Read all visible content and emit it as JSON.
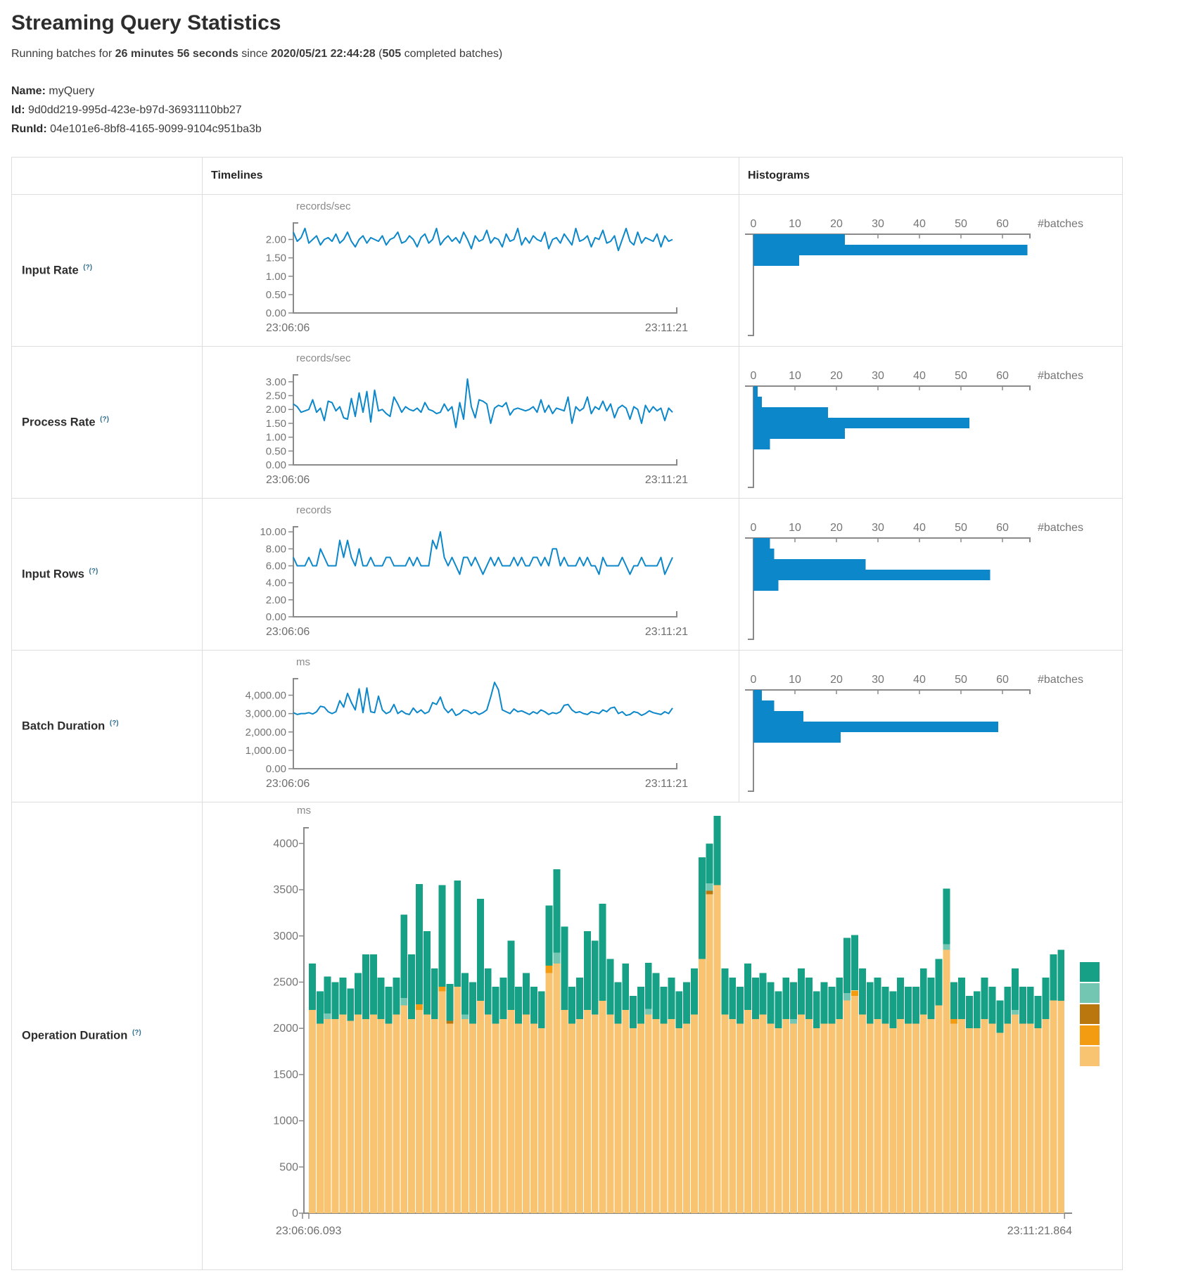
{
  "header": {
    "title": "Streaming Query Statistics"
  },
  "subtitle": {
    "part1": "Running batches for ",
    "bold1": "26 minutes 56 seconds",
    "part2": " since ",
    "bold2": "2020/05/21 22:44:28",
    "part3": " (",
    "bold3": "505",
    "part4": " completed batches)"
  },
  "meta": {
    "name_label": "Name:",
    "name": "myQuery",
    "id_label": "Id:",
    "id": "9d0dd219-995d-423e-b97d-36931110bb27",
    "runid_label": "RunId:",
    "runid": "04e101e6-8bf8-4165-9099-9104c951ba3b"
  },
  "table": {
    "timelines_header": "Timelines",
    "histograms_header": "Histograms"
  },
  "help_marker": "(?)",
  "colors": {
    "blue": "#0c87ca",
    "axis": "#8a8a8a",
    "tick_text": "#757575",
    "time_text": "#6e6e6e"
  },
  "rows": [
    {
      "label": "Input Rate",
      "timeline": {
        "unit": "records/sec",
        "v_max": 2.45,
        "y_ticks": [
          {
            "v": 0,
            "label": "0.00"
          },
          {
            "v": 0.5,
            "label": "0.50"
          },
          {
            "v": 1,
            "label": "1.00"
          },
          {
            "v": 1.5,
            "label": "1.50"
          },
          {
            "v": 2,
            "label": "2.00"
          }
        ],
        "x_left": "23:06:06",
        "x_right": "23:11:21",
        "values": [
          2.2,
          1.95,
          2.05,
          2.3,
          1.9,
          2.0,
          2.1,
          1.85,
          2.0,
          2.05,
          1.95,
          2.15,
          1.9,
          2.0,
          2.2,
          1.95,
          1.8,
          2.0,
          2.1,
          1.9,
          2.05,
          2.0,
          1.95,
          2.1,
          1.85,
          2.0,
          2.05,
          2.2,
          1.9,
          1.95,
          2.1,
          2.0,
          1.8,
          2.05,
          2.15,
          1.9,
          2.0,
          2.3,
          1.85,
          2.0,
          2.1,
          1.95,
          2.05,
          1.9,
          2.2,
          2.0,
          1.75,
          2.1,
          1.95,
          2.0,
          2.25,
          1.9,
          2.05,
          2.0,
          1.8,
          2.15,
          1.95,
          2.0,
          2.3,
          1.85,
          2.05,
          1.9,
          2.1,
          2.0,
          1.95,
          2.2,
          1.75,
          2.0,
          2.05,
          1.9,
          2.15,
          2.0,
          1.85,
          2.3,
          1.95,
          2.0,
          2.1,
          1.8,
          2.05,
          2.0,
          2.25,
          1.9,
          1.95,
          2.1,
          1.7,
          2.0,
          2.3,
          1.95,
          1.85,
          2.2,
          1.9,
          2.05,
          2.0,
          1.95,
          2.15,
          1.8,
          2.1,
          1.95,
          2.0
        ]
      },
      "histogram": {
        "ticks": [
          0,
          10,
          20,
          30,
          40,
          50,
          60
        ],
        "axis_label": "#batches",
        "values": [
          22,
          66,
          11
        ]
      }
    },
    {
      "label": "Process Rate",
      "timeline": {
        "unit": "records/sec",
        "v_max": 3.25,
        "y_ticks": [
          {
            "v": 0,
            "label": "0.00"
          },
          {
            "v": 0.5,
            "label": "0.50"
          },
          {
            "v": 1,
            "label": "1.00"
          },
          {
            "v": 1.5,
            "label": "1.50"
          },
          {
            "v": 2,
            "label": "2.00"
          },
          {
            "v": 2.5,
            "label": "2.50"
          },
          {
            "v": 3,
            "label": "3.00"
          }
        ],
        "x_left": "23:06:06",
        "x_right": "23:11:21",
        "values": [
          2.2,
          2.1,
          1.9,
          1.95,
          2.0,
          2.35,
          1.9,
          2.05,
          1.6,
          2.3,
          2.25,
          1.95,
          2.1,
          1.7,
          1.65,
          2.4,
          1.75,
          2.6,
          1.9,
          2.65,
          1.55,
          2.7,
          1.95,
          2.0,
          1.85,
          1.75,
          2.45,
          2.2,
          1.9,
          2.1,
          2.0,
          1.95,
          2.05,
          1.9,
          2.25,
          2.0,
          1.95,
          1.85,
          1.9,
          2.2,
          1.95,
          2.1,
          1.35,
          2.25,
          1.65,
          3.1,
          2.1,
          1.7,
          2.35,
          2.3,
          2.2,
          1.5,
          2.05,
          2.15,
          2.1,
          2.25,
          1.8,
          2.0,
          2.05,
          2.0,
          1.95,
          2.0,
          2.1,
          1.9,
          2.35,
          1.9,
          2.15,
          1.85,
          2.05,
          2.0,
          1.95,
          2.45,
          1.5,
          2.1,
          1.95,
          2.05,
          2.45,
          1.85,
          2.1,
          2.0,
          2.3,
          1.95,
          2.2,
          1.7,
          2.05,
          2.15,
          2.05,
          1.65,
          2.1,
          2.0,
          1.5,
          2.15,
          1.9,
          2.1,
          1.95,
          2.05,
          1.6,
          2.05,
          1.9
        ]
      },
      "histogram": {
        "ticks": [
          0,
          10,
          20,
          30,
          40,
          50,
          60
        ],
        "axis_label": "#batches",
        "values": [
          1,
          2,
          18,
          52,
          22,
          4
        ]
      }
    },
    {
      "label": "Input Rows",
      "timeline": {
        "unit": "records",
        "v_max": 10.6,
        "y_ticks": [
          {
            "v": 0,
            "label": "0.00"
          },
          {
            "v": 2,
            "label": "2.00"
          },
          {
            "v": 4,
            "label": "4.00"
          },
          {
            "v": 6,
            "label": "6.00"
          },
          {
            "v": 8,
            "label": "8.00"
          },
          {
            "v": 10,
            "label": "10.00"
          }
        ],
        "x_left": "23:06:06",
        "x_right": "23:11:21",
        "values": [
          7,
          6,
          6,
          6,
          7,
          6,
          6,
          8,
          7,
          6,
          6,
          6,
          9,
          7,
          9,
          7,
          6,
          8,
          6,
          6,
          7,
          6,
          6,
          6,
          7,
          7,
          6,
          6,
          6,
          6,
          7,
          6,
          7,
          6,
          6,
          6,
          9,
          8,
          10,
          7,
          6,
          7,
          6,
          5,
          7,
          7,
          6,
          7,
          6,
          5,
          6,
          7,
          6,
          7,
          6,
          6,
          6,
          7,
          6,
          7,
          6,
          6,
          7,
          7,
          6,
          7,
          6,
          8,
          8,
          6,
          7,
          6,
          6,
          6,
          7,
          6,
          7,
          6,
          6,
          5,
          7,
          6,
          6,
          6,
          6,
          7,
          6,
          5,
          6,
          6,
          7,
          6,
          6,
          6,
          6,
          7,
          5,
          6,
          7
        ]
      },
      "histogram": {
        "ticks": [
          0,
          10,
          20,
          30,
          40,
          50,
          60
        ],
        "axis_label": "#batches",
        "values": [
          4,
          5,
          27,
          57,
          6
        ]
      }
    },
    {
      "label": "Batch Duration",
      "timeline": {
        "unit": "ms",
        "v_max": 4900,
        "y_ticks": [
          {
            "v": 0,
            "label": "0.00"
          },
          {
            "v": 1000,
            "label": "1,000.00"
          },
          {
            "v": 2000,
            "label": "2,000.00"
          },
          {
            "v": 3000,
            "label": "3,000.00"
          },
          {
            "v": 4000,
            "label": "4,000.00"
          }
        ],
        "x_left": "23:06:06",
        "x_right": "23:11:21",
        "values": [
          3050,
          2950,
          3000,
          3000,
          3050,
          2980,
          3100,
          3400,
          3350,
          3100,
          3000,
          3100,
          3700,
          3350,
          4100,
          3600,
          3200,
          4350,
          3050,
          4400,
          3100,
          3050,
          3950,
          3200,
          3000,
          3100,
          3500,
          3000,
          3150,
          3000,
          2950,
          3300,
          3050,
          3200,
          3000,
          3100,
          3600,
          3500,
          3900,
          3300,
          3050,
          3250,
          2900,
          3000,
          3200,
          3150,
          3000,
          3100,
          2950,
          3050,
          3200,
          3900,
          4700,
          4300,
          3200,
          3100,
          3000,
          3250,
          3100,
          3150,
          3050,
          2950,
          3100,
          3000,
          3200,
          3100,
          2950,
          3050,
          3000,
          3100,
          3450,
          3500,
          3200,
          3050,
          3100,
          3000,
          2950,
          3100,
          3050,
          3000,
          3200,
          3100,
          3300,
          3350,
          3000,
          3100,
          2900,
          2950,
          3100,
          3050,
          2900,
          3000,
          3150,
          3050,
          3000,
          2950,
          3100,
          3000,
          3300
        ]
      },
      "histogram": {
        "ticks": [
          0,
          10,
          20,
          30,
          40,
          50,
          60
        ],
        "axis_label": "#batches",
        "values": [
          2,
          5,
          12,
          59,
          21
        ]
      }
    }
  ],
  "operation": {
    "label": "Operation Duration",
    "timeline": {
      "unit": "ms",
      "v_max": 4170,
      "y_ticks": [
        {
          "v": 0,
          "label": "0"
        },
        {
          "v": 500,
          "label": "500"
        },
        {
          "v": 1000,
          "label": "1000"
        },
        {
          "v": 1500,
          "label": "1500"
        },
        {
          "v": 2000,
          "label": "2000"
        },
        {
          "v": 2500,
          "label": "2500"
        },
        {
          "v": 3000,
          "label": "3000"
        },
        {
          "v": 3500,
          "label": "3500"
        },
        {
          "v": 4000,
          "label": "4000"
        }
      ],
      "x_left": "23:06:06.093",
      "x_right": "23:11:21.864",
      "series": {
        "light_orange": [
          2200,
          2050,
          2100,
          2100,
          2150,
          2080,
          2150,
          2100,
          2150,
          2100,
          2050,
          2150,
          2250,
          2100,
          2200,
          2150,
          2100,
          2400,
          2050,
          2450,
          2100,
          2050,
          2300,
          2150,
          2050,
          2100,
          2200,
          2050,
          2150,
          2050,
          2000,
          2600,
          2700,
          2200,
          2050,
          2100,
          2200,
          2150,
          2300,
          2150,
          2050,
          2200,
          2000,
          2050,
          2150,
          2100,
          2050,
          2100,
          2000,
          2050,
          2150,
          2750,
          3450,
          3550,
          2150,
          2100,
          2050,
          2200,
          2100,
          2150,
          2050,
          2000,
          2100,
          2050,
          2150,
          2100,
          2000,
          2050,
          2050,
          2100,
          2300,
          2350,
          2150,
          2050,
          2100,
          2050,
          2000,
          2100,
          2050,
          2050,
          2150,
          2100,
          2250,
          2850,
          2050,
          2100,
          2000,
          2000,
          2100,
          2050,
          1950,
          2050,
          2150,
          2050,
          2050,
          2000,
          2100,
          2300,
          2300
        ],
        "orange": {
          "14": 60,
          "17": 50,
          "31": 80,
          "71": 60,
          "84": 50
        },
        "dark_orange": {
          "18": 30,
          "52": 40
        },
        "light_teal": {
          "2": 60,
          "12": 80,
          "20": 50,
          "32": 120,
          "44": 60,
          "52": 80,
          "63": 50,
          "70": 80,
          "83": 60,
          "92": 50
        },
        "teal": [
          500,
          350,
          400,
          400,
          400,
          350,
          450,
          700,
          650,
          450,
          400,
          400,
          900,
          700,
          1300,
          900,
          550,
          1100,
          400,
          1150,
          450,
          450,
          1100,
          500,
          400,
          450,
          750,
          400,
          450,
          400,
          400,
          650,
          900,
          900,
          400,
          450,
          850,
          800,
          1050,
          600,
          450,
          500,
          350,
          400,
          500,
          500,
          400,
          450,
          400,
          450,
          500,
          1100,
          430,
          750,
          500,
          450,
          400,
          500,
          450,
          450,
          450,
          400,
          450,
          400,
          500,
          450,
          400,
          450,
          400,
          450,
          600,
          600,
          500,
          450,
          450,
          400,
          400,
          450,
          400,
          400,
          500,
          450,
          500,
          600,
          400,
          450,
          350,
          400,
          450,
          400,
          350,
          400,
          450,
          400,
          400,
          350,
          450,
          500,
          550
        ]
      },
      "series_colors": {
        "light_orange": "#f8c471",
        "orange": "#f39c12",
        "dark_orange": "#b9770e",
        "light_teal": "#73c6b1",
        "teal": "#16a085"
      },
      "legend_colors": [
        "#16a085",
        "#73c6b1",
        "#b9770e",
        "#f39c12",
        "#f8c471"
      ]
    }
  }
}
